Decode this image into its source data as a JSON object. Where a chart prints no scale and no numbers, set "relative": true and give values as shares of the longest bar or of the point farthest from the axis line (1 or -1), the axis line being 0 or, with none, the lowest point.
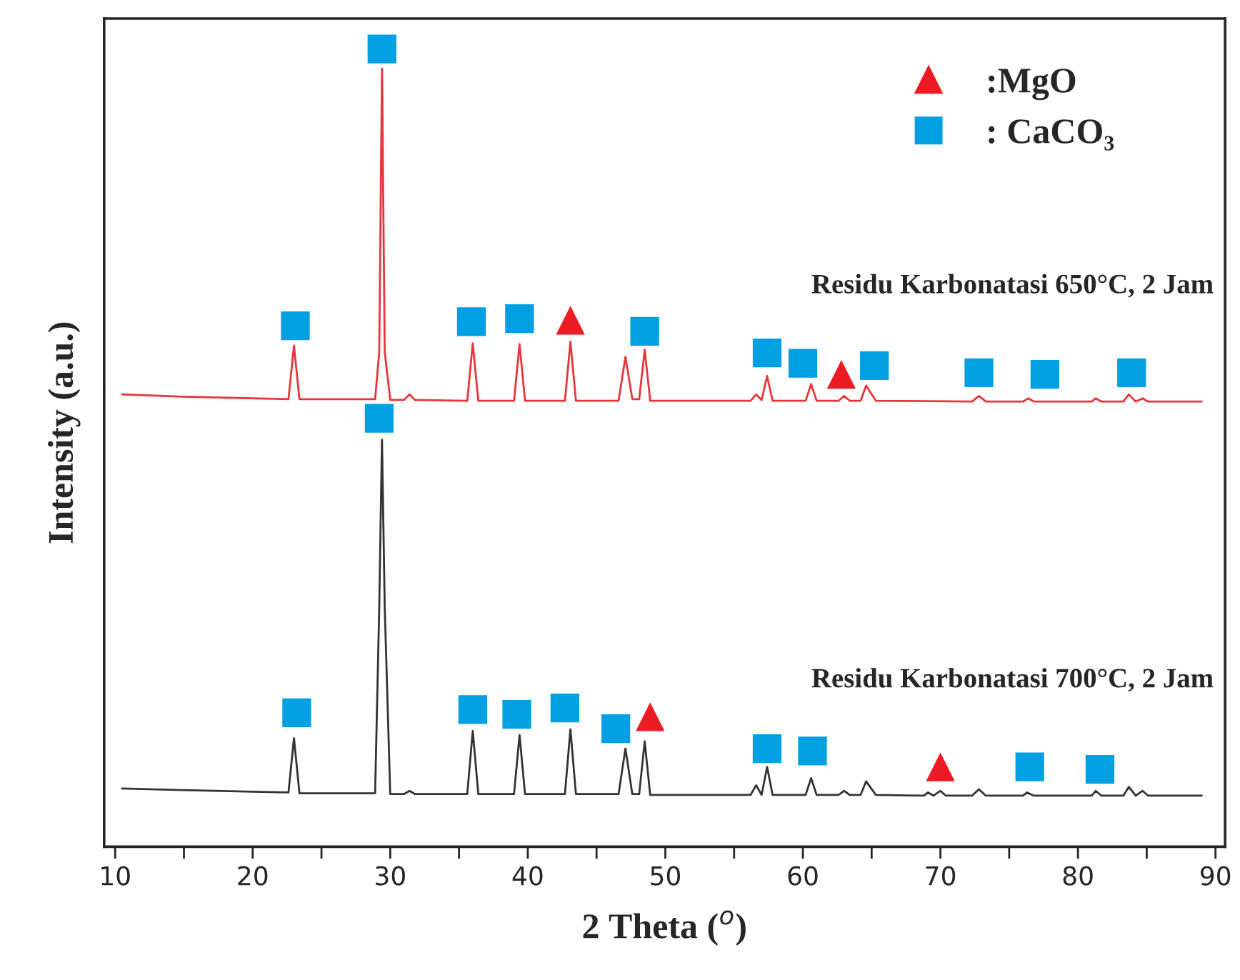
{
  "chart_data": {
    "type": "line",
    "relative": true,
    "xlabel": "2 Theta ($^{o}$)",
    "ylabel": "Intensity (a.u.)",
    "xlim": [
      9.2,
      90.7
    ],
    "xticks": [
      10,
      {
        "value": 15,
        "label": null
      },
      20,
      {
        "value": 25,
        "label": null
      },
      30,
      {
        "value": 35,
        "label": null
      },
      40,
      {
        "value": 45,
        "label": null
      },
      50,
      {
        "value": 55,
        "label": null
      },
      60,
      {
        "value": 65,
        "label": null
      },
      70,
      {
        "value": 75,
        "label": null
      },
      80,
      {
        "value": 85,
        "label": null
      },
      90
    ],
    "grid": false,
    "annotations": [
      "Residu Karbonatasi 650°C, 2 Jam",
      "Residu Karbonatasi 700°C, 2 Jam"
    ],
    "legend": "top right",
    "series": [
      {
        "color": "#e8353b",
        "marker": "none",
        "x": [
          10.5,
          15,
          20,
          22.6,
          23.0,
          23.4,
          28.9,
          29.2,
          29.4,
          29.6,
          30.0,
          31.0,
          31.4,
          31.8,
          35.6,
          36.0,
          36.4,
          39.0,
          39.4,
          39.8,
          42.7,
          43.1,
          43.5,
          46.6,
          47.1,
          47.6,
          48.1,
          48.5,
          48.9,
          56.2,
          56.6,
          57.0,
          57.4,
          57.8,
          60.2,
          60.6,
          61.0,
          62.6,
          63.0,
          63.4,
          64.2,
          64.6,
          65.3,
          72.3,
          72.8,
          73.3,
          76.0,
          76.4,
          76.8,
          81.0,
          81.3,
          81.7,
          83.3,
          83.7,
          84.2,
          84.7,
          85.1,
          89.0
        ],
        "values": [
          0.567,
          0.564,
          0.562,
          0.561,
          0.628,
          0.561,
          0.561,
          0.62,
          0.975,
          0.62,
          0.56,
          0.56,
          0.567,
          0.56,
          0.559,
          0.631,
          0.559,
          0.559,
          0.63,
          0.559,
          0.559,
          0.633,
          0.559,
          0.559,
          0.614,
          0.561,
          0.561,
          0.623,
          0.559,
          0.559,
          0.567,
          0.56,
          0.59,
          0.559,
          0.559,
          0.58,
          0.559,
          0.559,
          0.565,
          0.559,
          0.559,
          0.578,
          0.559,
          0.558,
          0.565,
          0.558,
          0.558,
          0.562,
          0.558,
          0.558,
          0.562,
          0.558,
          0.558,
          0.567,
          0.558,
          0.562,
          0.558,
          0.558
        ]
      },
      {
        "color": "#333333",
        "marker": "none",
        "x": [
          10.5,
          15,
          20,
          22.6,
          23.0,
          23.4,
          28.9,
          29.2,
          29.4,
          29.6,
          30.0,
          31.0,
          31.4,
          31.8,
          35.6,
          36.0,
          36.4,
          39.0,
          39.4,
          39.8,
          42.7,
          43.1,
          43.5,
          46.6,
          47.1,
          47.6,
          48.1,
          48.5,
          48.9,
          56.2,
          56.6,
          57.0,
          57.4,
          57.8,
          60.2,
          60.6,
          61.0,
          62.6,
          63.0,
          63.4,
          64.2,
          64.6,
          65.3,
          68.8,
          69.1,
          69.5,
          70.0,
          70.4,
          72.3,
          72.8,
          73.3,
          76.0,
          76.3,
          76.8,
          81.0,
          81.3,
          81.7,
          83.3,
          83.7,
          84.2,
          84.7,
          85.1,
          89.0
        ],
        "values": [
          0.073,
          0.071,
          0.069,
          0.068,
          0.136,
          0.067,
          0.067,
          0.3,
          0.51,
          0.3,
          0.066,
          0.066,
          0.07,
          0.066,
          0.066,
          0.145,
          0.066,
          0.066,
          0.14,
          0.066,
          0.066,
          0.147,
          0.066,
          0.066,
          0.123,
          0.066,
          0.066,
          0.132,
          0.065,
          0.065,
          0.077,
          0.065,
          0.1,
          0.065,
          0.065,
          0.086,
          0.065,
          0.065,
          0.07,
          0.065,
          0.065,
          0.082,
          0.065,
          0.064,
          0.068,
          0.064,
          0.07,
          0.064,
          0.064,
          0.072,
          0.064,
          0.064,
          0.068,
          0.064,
          0.064,
          0.07,
          0.064,
          0.064,
          0.075,
          0.064,
          0.07,
          0.064,
          0.064
        ]
      },
      {
        "type": "scatter",
        "name": ":MgO",
        "color": "#ed1c24",
        "marker": "triangle",
        "x": [
          43.1,
          62.8,
          48.9,
          70.0
        ],
        "values": [
          0.66,
          0.592,
          0.163,
          0.1
        ]
      },
      {
        "type": "scatter",
        "name": ": CaCO₃",
        "color": "#00a0e3",
        "marker": "square",
        "x": [
          23.1,
          29.4,
          35.9,
          39.4,
          48.5,
          57.4,
          60.0,
          65.2,
          72.8,
          77.6,
          83.9,
          23.2,
          29.2,
          36.0,
          39.2,
          42.7,
          46.4,
          57.4,
          60.7,
          76.5,
          81.6
        ],
        "values": [
          0.653,
          1.0,
          0.658,
          0.662,
          0.646,
          0.619,
          0.606,
          0.603,
          0.594,
          0.592,
          0.594,
          0.168,
          0.537,
          0.172,
          0.166,
          0.174,
          0.148,
          0.123,
          0.12,
          0.1,
          0.097
        ]
      }
    ]
  }
}
